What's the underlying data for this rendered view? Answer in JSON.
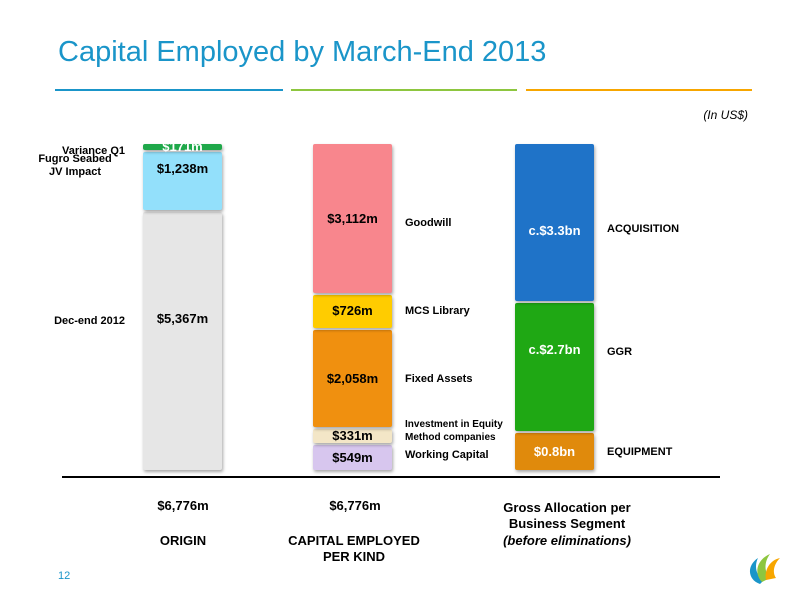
{
  "header": {
    "title": "Capital Employed by March-End 2013",
    "unit_note": "(In US$)",
    "rule_colors": [
      "#1a95c9",
      "#8dc63f",
      "#f7a600"
    ]
  },
  "chart_data": {
    "type": "stacked-bar",
    "unit": "US$",
    "bars": [
      {
        "key": "origin",
        "label": "ORIGIN",
        "total_label": "$6,776m",
        "segments": [
          {
            "name": "Dec-end 2012",
            "value": 5367,
            "value_label": "$5,367m",
            "color": "#e6e6e6"
          },
          {
            "name": "Fugro Seabed JV Impact",
            "value": 1238,
            "value_label": "$1,238m",
            "color": "#93e0fb"
          },
          {
            "name": "Variance Q1",
            "value": 171,
            "value_label": "$171m",
            "color": "#1fa84a"
          }
        ]
      },
      {
        "key": "kind",
        "label": "CAPITAL EMPLOYED PER KIND",
        "total_label": "$6,776m",
        "segments": [
          {
            "name": "Working Capital",
            "value": 549,
            "value_label": "$549m",
            "color": "#d7c6ee"
          },
          {
            "name": "Investment in Equity Method companies",
            "value": 331,
            "value_label": "$331m",
            "color": "#f3e6c7"
          },
          {
            "name": "Fixed Assets",
            "value": 2058,
            "value_label": "$2,058m",
            "color": "#f0900f"
          },
          {
            "name": "MCS Library",
            "value": 726,
            "value_label": "$726m",
            "color": "#ffcc00"
          },
          {
            "name": "Goodwill",
            "value": 3112,
            "value_label": "$3,112m",
            "color": "#f8868d"
          }
        ]
      },
      {
        "key": "segment",
        "label": "Gross Allocation per Business Segment",
        "sublabel": "(before eliminations)",
        "segments": [
          {
            "name": "EQUIPMENT",
            "value": 800,
            "value_label": "$0.8bn",
            "color": "#e08a0c"
          },
          {
            "name": "GGR",
            "value": 2700,
            "value_label": "c.$2.7bn",
            "color": "#1fa814"
          },
          {
            "name": "ACQUISITION",
            "value": 3300,
            "value_label": "c.$3.3bn",
            "color": "#1f73c8"
          }
        ]
      }
    ]
  },
  "footer": {
    "page_number": "12",
    "logo": "cgg-swirl-logo"
  }
}
